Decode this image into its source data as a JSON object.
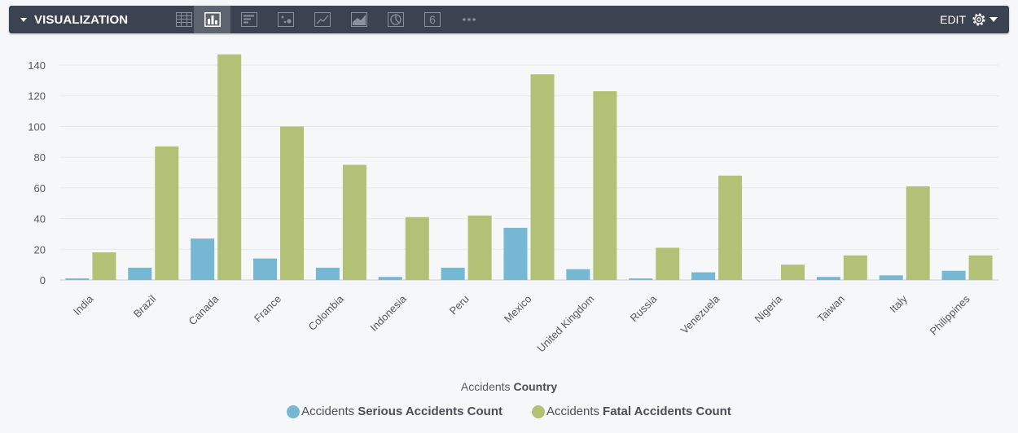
{
  "toolbar": {
    "title": "VISUALIZATION",
    "edit_label": "EDIT",
    "tools": [
      {
        "name": "table-icon",
        "active": false
      },
      {
        "name": "column-chart-icon",
        "active": true
      },
      {
        "name": "bar-chart-icon",
        "active": false
      },
      {
        "name": "scatter-icon",
        "active": false
      },
      {
        "name": "line-chart-icon",
        "active": false
      },
      {
        "name": "area-chart-icon",
        "active": false
      },
      {
        "name": "pie-chart-icon",
        "active": false
      },
      {
        "name": "single-value-icon",
        "active": false,
        "glyph": "6"
      },
      {
        "name": "more-icon",
        "active": false
      }
    ]
  },
  "legend": {
    "serious_prefix": "Accidents",
    "serious_name": "Serious Accidents Count",
    "fatal_prefix": "Accidents",
    "fatal_name": "Fatal Accidents Count"
  },
  "chart_data": {
    "type": "bar",
    "xlabel_prefix": "Accidents",
    "xlabel_field": "Country",
    "ylim": [
      0,
      150
    ],
    "yticks": [
      0,
      20,
      40,
      60,
      80,
      100,
      120,
      140
    ],
    "grid": true,
    "legend_position": "bottom",
    "categories": [
      "India",
      "Brazil",
      "Canada",
      "France",
      "Colombia",
      "Indonesia",
      "Peru",
      "Mexico",
      "United Kingdom",
      "Russia",
      "Venezuela",
      "Nigeria",
      "Taiwan",
      "Italy",
      "Philippines"
    ],
    "series": [
      {
        "name": "Accidents Serious Accidents Count",
        "color": "#76b8d3",
        "values": [
          1,
          8,
          27,
          14,
          8,
          2,
          8,
          34,
          7,
          1,
          5,
          0,
          2,
          3,
          6
        ]
      },
      {
        "name": "Accidents Fatal Accidents Count",
        "color": "#b2c175",
        "values": [
          18,
          87,
          147,
          100,
          75,
          41,
          42,
          134,
          123,
          21,
          68,
          10,
          16,
          61,
          16
        ]
      }
    ]
  }
}
